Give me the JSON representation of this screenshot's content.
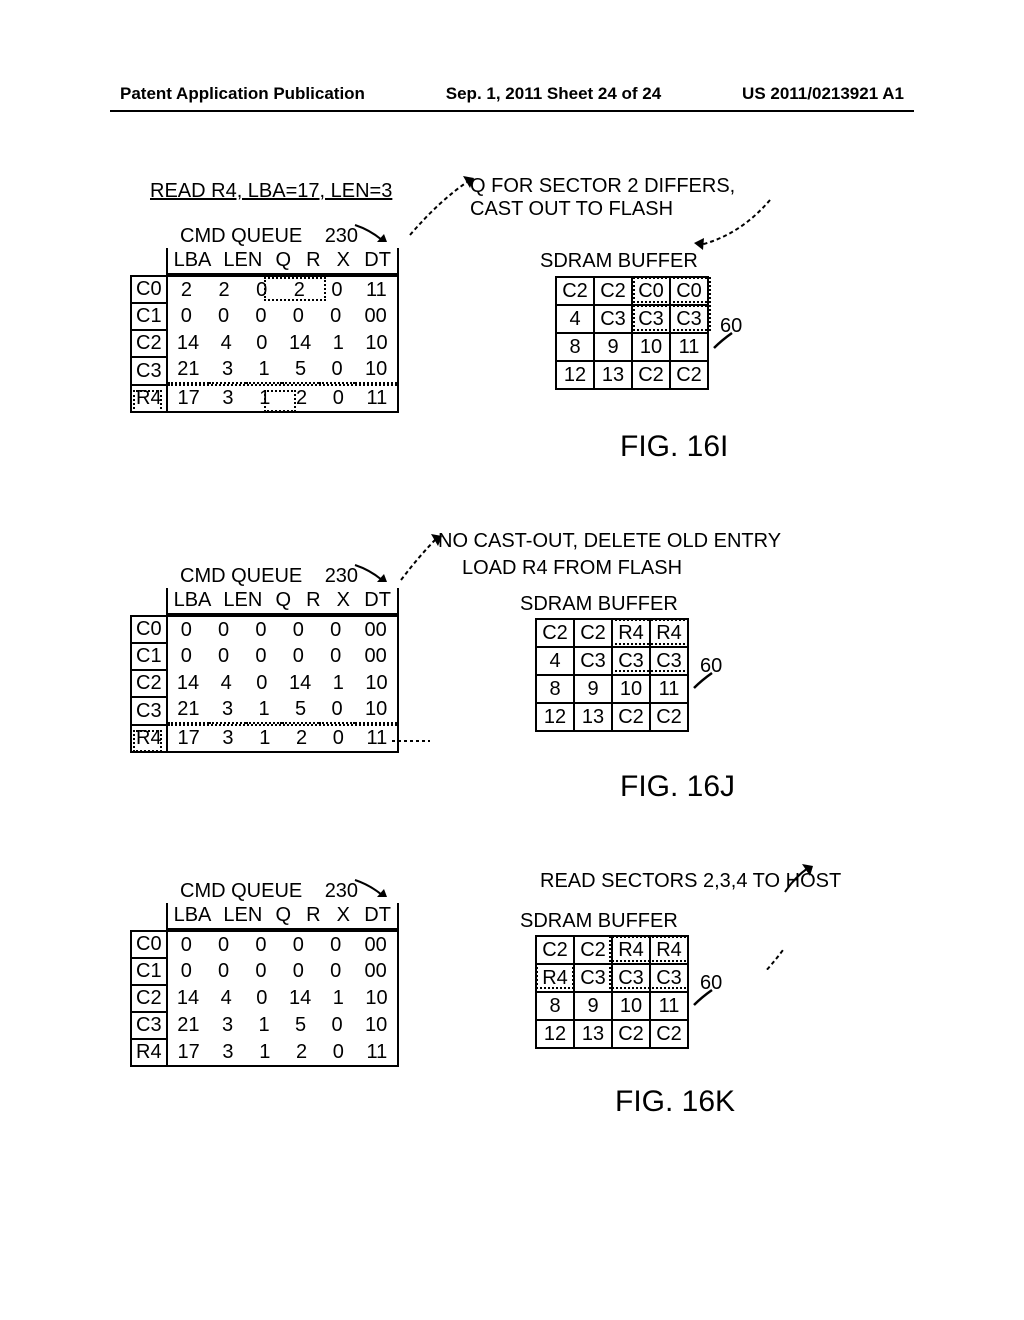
{
  "header": {
    "left": "Patent Application Publication",
    "center": "Sep. 1, 2011  Sheet 24 of 24",
    "right": "US 2011/0213921 A1"
  },
  "panel_i": {
    "title": "READ R4, LBA=17, LEN=3",
    "queue_label": "CMD QUEUE",
    "queue_ref": "230",
    "columns": [
      "LBA",
      "LEN",
      "Q",
      "R",
      "X",
      "DT"
    ],
    "rows": [
      {
        "label": "C0",
        "cells": [
          "2",
          "2",
          "0",
          "2",
          "0",
          "11"
        ]
      },
      {
        "label": "C1",
        "cells": [
          "0",
          "0",
          "0",
          "0",
          "0",
          "00"
        ]
      },
      {
        "label": "C2",
        "cells": [
          "14",
          "4",
          "0",
          "14",
          "1",
          "10"
        ]
      },
      {
        "label": "C3",
        "cells": [
          "21",
          "3",
          "1",
          "5",
          "0",
          "10"
        ]
      },
      {
        "label": "R4",
        "cells": [
          "17",
          "3",
          "1",
          "2",
          "0",
          "11"
        ]
      }
    ],
    "note1": "Q FOR SECTOR 2 DIFFERS,",
    "note2": "CAST OUT TO FLASH",
    "buffer_label": "SDRAM BUFFER",
    "buffer_ref": "60",
    "buffer": [
      [
        "C2",
        "C2",
        "C0",
        "C0"
      ],
      [
        "4",
        "C3",
        "C3",
        "C3"
      ],
      [
        "8",
        "9",
        "10",
        "11"
      ],
      [
        "12",
        "13",
        "C2",
        "C2"
      ]
    ],
    "fig": "FIG. 16I"
  },
  "panel_j": {
    "queue_label": "CMD QUEUE",
    "queue_ref": "230",
    "columns": [
      "LBA",
      "LEN",
      "Q",
      "R",
      "X",
      "DT"
    ],
    "rows": [
      {
        "label": "C0",
        "cells": [
          "0",
          "0",
          "0",
          "0",
          "0",
          "00"
        ]
      },
      {
        "label": "C1",
        "cells": [
          "0",
          "0",
          "0",
          "0",
          "0",
          "00"
        ]
      },
      {
        "label": "C2",
        "cells": [
          "14",
          "4",
          "0",
          "14",
          "1",
          "10"
        ]
      },
      {
        "label": "C3",
        "cells": [
          "21",
          "3",
          "1",
          "5",
          "0",
          "10"
        ]
      },
      {
        "label": "R4",
        "cells": [
          "17",
          "3",
          "1",
          "2",
          "0",
          "11"
        ]
      }
    ],
    "note1": "NO CAST-OUT, DELETE OLD ENTRY",
    "note2": "LOAD R4 FROM FLASH",
    "buffer_label": "SDRAM BUFFER",
    "buffer_ref": "60",
    "buffer": [
      [
        "C2",
        "C2",
        "R4",
        "R4"
      ],
      [
        "4",
        "C3",
        "C3",
        "C3"
      ],
      [
        "8",
        "9",
        "10",
        "11"
      ],
      [
        "12",
        "13",
        "C2",
        "C2"
      ]
    ],
    "fig": "FIG. 16J"
  },
  "panel_k": {
    "queue_label": "CMD QUEUE",
    "queue_ref": "230",
    "columns": [
      "LBA",
      "LEN",
      "Q",
      "R",
      "X",
      "DT"
    ],
    "rows": [
      {
        "label": "C0",
        "cells": [
          "0",
          "0",
          "0",
          "0",
          "0",
          "00"
        ]
      },
      {
        "label": "C1",
        "cells": [
          "0",
          "0",
          "0",
          "0",
          "0",
          "00"
        ]
      },
      {
        "label": "C2",
        "cells": [
          "14",
          "4",
          "0",
          "14",
          "1",
          "10"
        ]
      },
      {
        "label": "C3",
        "cells": [
          "21",
          "3",
          "1",
          "5",
          "0",
          "10"
        ]
      },
      {
        "label": "R4",
        "cells": [
          "17",
          "3",
          "1",
          "2",
          "0",
          "11"
        ]
      }
    ],
    "note1": "READ SECTORS 2,3,4 TO HOST",
    "buffer_label": "SDRAM BUFFER",
    "buffer_ref": "60",
    "buffer": [
      [
        "C2",
        "C2",
        "R4",
        "R4"
      ],
      [
        "R4",
        "C3",
        "C3",
        "C3"
      ],
      [
        "8",
        "9",
        "10",
        "11"
      ],
      [
        "12",
        "13",
        "C2",
        "C2"
      ]
    ],
    "fig": "FIG. 16K"
  },
  "colors": {
    "text": "#000000",
    "border": "#000000",
    "bg": "#ffffff"
  },
  "fonts": {
    "body_size": 20,
    "header_size": 17,
    "fig_size": 30
  }
}
